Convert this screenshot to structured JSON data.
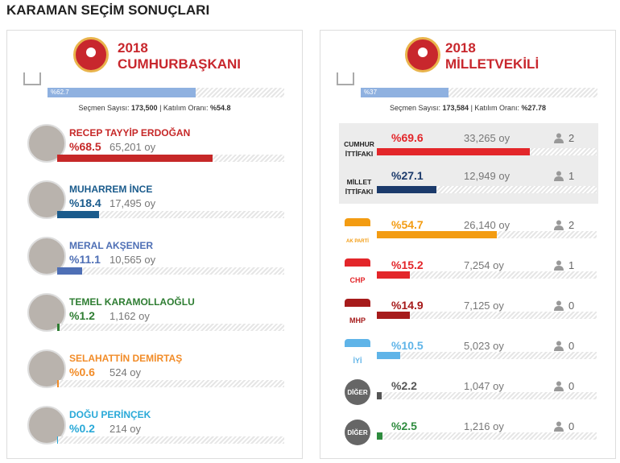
{
  "header": {
    "title": "KARAMAN SEÇİM SONUÇLARI"
  },
  "presidential": {
    "year": "2018",
    "title": "CUMHURBAŞKANI",
    "opened": {
      "value": 62.7,
      "label": "%62.7"
    },
    "color": "#8fb1e0",
    "stats": {
      "voters_label": "Seçmen Sayısı:",
      "voters": "173,500",
      "turnout_label": "| Katılım Oranı:",
      "turnout": "%54.8"
    },
    "candidates": [
      {
        "name": "RECEP TAYYİP ERDOĞAN",
        "percent": {
          "value": 68.5,
          "label": "%68.5"
        },
        "votes": "65,201 oy",
        "color": "#c62828"
      },
      {
        "name": "MUHARREM İNCE",
        "percent": {
          "value": 18.4,
          "label": "%18.4"
        },
        "votes": "17,495 oy",
        "color": "#1a5b8c"
      },
      {
        "name": "MERAL AKŞENER",
        "percent": {
          "value": 11.1,
          "label": "%11.1"
        },
        "votes": "10,565 oy",
        "color": "#4e6fb5"
      },
      {
        "name": "TEMEL KARAMOLLAOĞLU",
        "percent": {
          "value": 1.2,
          "label": "%1.2"
        },
        "votes": "1,162 oy",
        "color": "#2e7d32"
      },
      {
        "name": "SELAHATTİN DEMİRTAŞ",
        "percent": {
          "value": 0.6,
          "label": "%0.6"
        },
        "votes": "524 oy",
        "color": "#f28c28"
      },
      {
        "name": "DOĞU PERİNÇEK",
        "percent": {
          "value": 0.2,
          "label": "%0.2"
        },
        "votes": "214 oy",
        "color": "#29a9d8"
      }
    ]
  },
  "parliament": {
    "year": "2018",
    "title": "MİLLETVEKİLİ",
    "opened": {
      "value": 37,
      "label": "%37"
    },
    "color": "#8fb1e0",
    "stats": {
      "voters_label": "Seçmen Sayısı:",
      "voters": "173,584",
      "turnout_label": "| Katılım Oranı:",
      "turnout": "%27.78"
    },
    "alliances": [
      {
        "name": "CUMHUR İTTİFAKI",
        "percent": {
          "value": 69.6,
          "label": "%69.6"
        },
        "votes": "33,265 oy",
        "seats": 2,
        "color": "#e3262a"
      },
      {
        "name": "MİLLET İTTİFAKI",
        "percent": {
          "value": 27.1,
          "label": "%27.1"
        },
        "votes": "12,949 oy",
        "seats": 1,
        "color": "#1b3a6b"
      }
    ],
    "parties": [
      {
        "logo": "AK PARTİ",
        "percent": {
          "value": 54.7,
          "label": "%54.7"
        },
        "votes": "26,140 oy",
        "seats": 2,
        "color": "#f39c12"
      },
      {
        "logo": "CHP",
        "percent": {
          "value": 15.2,
          "label": "%15.2"
        },
        "votes": "7,254 oy",
        "seats": 1,
        "color": "#e3262a"
      },
      {
        "logo": "MHP",
        "percent": {
          "value": 14.9,
          "label": "%14.9"
        },
        "votes": "7,125 oy",
        "seats": 0,
        "color": "#a61b1b"
      },
      {
        "logo": "İYİ",
        "percent": {
          "value": 10.5,
          "label": "%10.5"
        },
        "votes": "5,023 oy",
        "seats": 0,
        "color": "#5fb4e8"
      },
      {
        "logo": "DİĞER",
        "percent": {
          "value": 2.2,
          "label": "%2.2"
        },
        "votes": "1,047 oy",
        "seats": 0,
        "color": "#555555"
      },
      {
        "logo": "DİĞER",
        "percent": {
          "value": 2.5,
          "label": "%2.5"
        },
        "votes": "1,216 oy",
        "seats": 0,
        "color": "#2e8b3e"
      }
    ]
  }
}
